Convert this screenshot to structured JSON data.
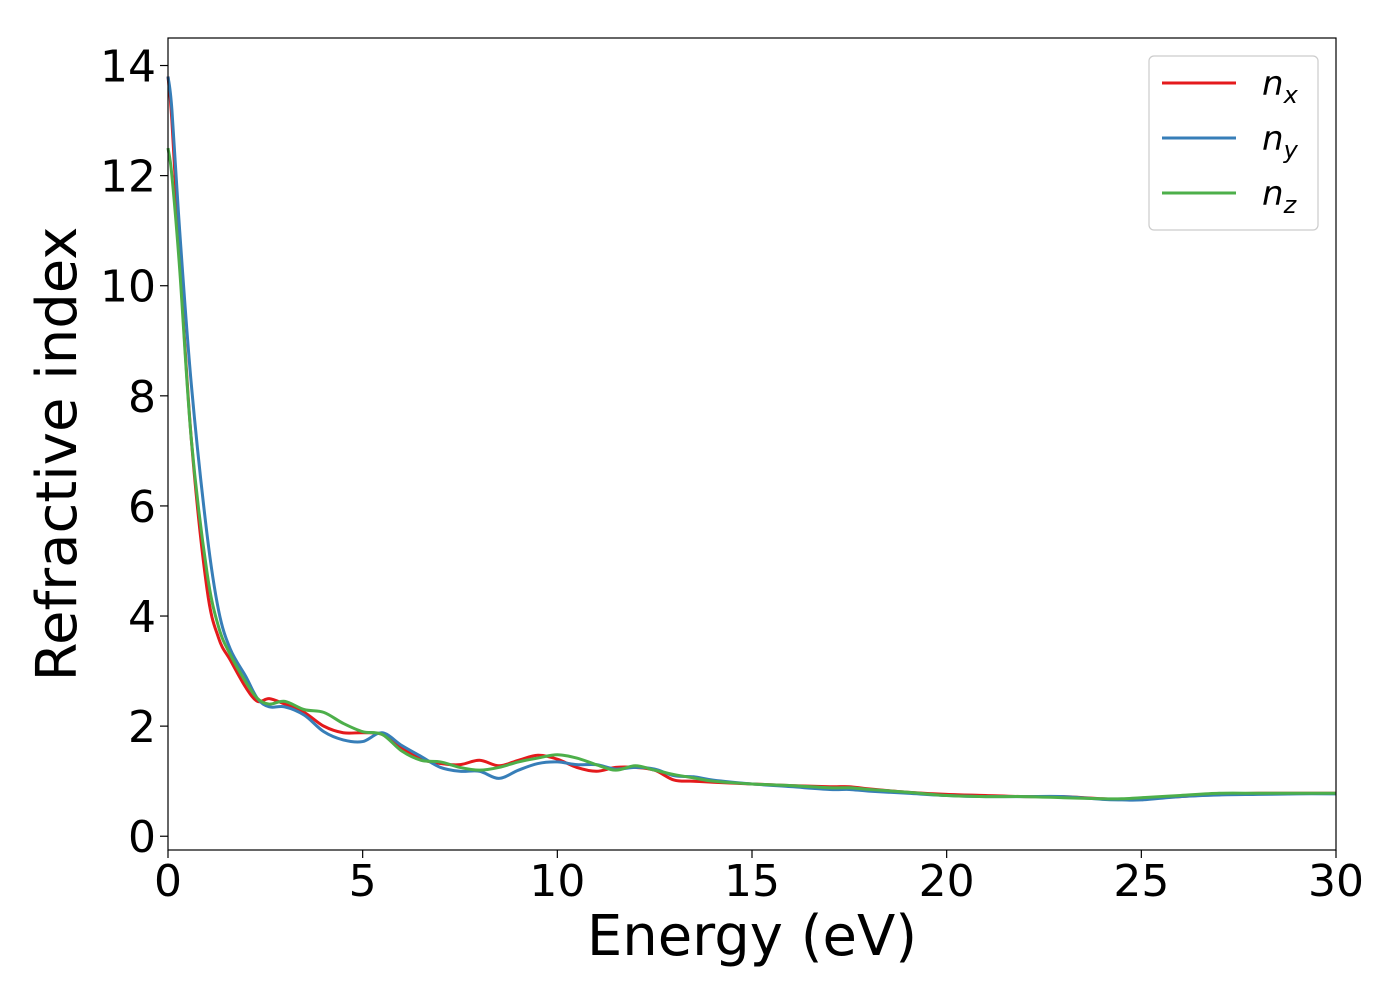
{
  "chart_data": {
    "type": "line",
    "xlabel": "Energy (eV)",
    "ylabel": "Refractive index",
    "xlim": [
      0,
      30
    ],
    "ylim": [
      -0.25,
      14.5
    ],
    "xticks": [
      0,
      5,
      10,
      15,
      20,
      25,
      30
    ],
    "yticks": [
      0,
      2,
      4,
      6,
      8,
      10,
      12,
      14
    ],
    "grid": false,
    "legend_position": "top-right",
    "series": [
      {
        "name": "n",
        "subscript": "x",
        "color": "#e41a1c",
        "x": [
          0,
          0.1,
          0.3,
          0.6,
          1.0,
          1.3,
          1.6,
          2.0,
          2.3,
          2.6,
          3.0,
          3.5,
          4.0,
          4.5,
          5.0,
          5.5,
          6.0,
          6.5,
          7.0,
          7.5,
          8.0,
          8.5,
          9.0,
          9.5,
          10.0,
          10.5,
          11.0,
          11.5,
          12.0,
          12.5,
          13.0,
          13.5,
          14.0,
          15.0,
          16.0,
          17.0,
          17.5,
          18.0,
          19.0,
          20.0,
          21.0,
          22.0,
          23.0,
          24.0,
          24.5,
          25.0,
          26.0,
          27.0,
          28.0,
          29.0,
          30.0
        ],
        "values": [
          13.8,
          13.0,
          10.5,
          7.2,
          4.5,
          3.6,
          3.2,
          2.7,
          2.45,
          2.5,
          2.4,
          2.25,
          2.0,
          1.88,
          1.88,
          1.85,
          1.6,
          1.4,
          1.32,
          1.3,
          1.38,
          1.28,
          1.38,
          1.47,
          1.4,
          1.25,
          1.18,
          1.25,
          1.25,
          1.2,
          1.02,
          1.0,
          0.98,
          0.95,
          0.92,
          0.9,
          0.9,
          0.86,
          0.8,
          0.76,
          0.74,
          0.72,
          0.72,
          0.68,
          0.67,
          0.68,
          0.72,
          0.76,
          0.78,
          0.78,
          0.78
        ]
      },
      {
        "name": "n",
        "subscript": "y",
        "color": "#377eb8",
        "x": [
          0,
          0.1,
          0.3,
          0.6,
          1.0,
          1.3,
          1.6,
          2.0,
          2.3,
          2.6,
          3.0,
          3.5,
          4.0,
          4.5,
          5.0,
          5.5,
          6.0,
          6.5,
          7.0,
          7.5,
          8.0,
          8.5,
          9.0,
          9.5,
          10.0,
          10.5,
          11.0,
          11.5,
          12.0,
          12.5,
          13.0,
          13.5,
          14.0,
          15.0,
          16.0,
          17.0,
          17.5,
          18.0,
          19.0,
          20.0,
          21.0,
          22.0,
          23.0,
          24.0,
          24.5,
          25.0,
          26.0,
          27.0,
          28.0,
          29.0,
          30.0
        ],
        "values": [
          13.8,
          13.2,
          11.0,
          8.2,
          5.5,
          4.1,
          3.4,
          2.9,
          2.5,
          2.35,
          2.35,
          2.2,
          1.9,
          1.75,
          1.72,
          1.88,
          1.65,
          1.45,
          1.25,
          1.18,
          1.18,
          1.05,
          1.2,
          1.32,
          1.35,
          1.3,
          1.3,
          1.22,
          1.25,
          1.22,
          1.1,
          1.08,
          1.02,
          0.95,
          0.9,
          0.85,
          0.85,
          0.82,
          0.78,
          0.74,
          0.72,
          0.72,
          0.72,
          0.67,
          0.66,
          0.66,
          0.72,
          0.75,
          0.76,
          0.77,
          0.77
        ]
      },
      {
        "name": "n",
        "subscript": "z",
        "color": "#4daf4a",
        "x": [
          0,
          0.1,
          0.3,
          0.6,
          1.0,
          1.3,
          1.6,
          2.0,
          2.3,
          2.6,
          3.0,
          3.5,
          4.0,
          4.5,
          5.0,
          5.5,
          6.0,
          6.5,
          7.0,
          7.5,
          8.0,
          8.5,
          9.0,
          9.5,
          10.0,
          10.5,
          11.0,
          11.5,
          12.0,
          12.5,
          13.0,
          13.5,
          14.0,
          15.0,
          16.0,
          17.0,
          17.5,
          18.0,
          19.0,
          20.0,
          21.0,
          22.0,
          23.0,
          24.0,
          24.5,
          25.0,
          26.0,
          27.0,
          28.0,
          29.0,
          30.0
        ],
        "values": [
          12.5,
          12.0,
          10.3,
          7.2,
          4.8,
          3.8,
          3.3,
          2.8,
          2.5,
          2.4,
          2.45,
          2.3,
          2.25,
          2.05,
          1.9,
          1.85,
          1.55,
          1.38,
          1.35,
          1.25,
          1.2,
          1.25,
          1.35,
          1.42,
          1.48,
          1.42,
          1.3,
          1.2,
          1.28,
          1.2,
          1.12,
          1.06,
          1.0,
          0.95,
          0.92,
          0.88,
          0.88,
          0.85,
          0.8,
          0.74,
          0.72,
          0.72,
          0.7,
          0.68,
          0.68,
          0.7,
          0.74,
          0.78,
          0.78,
          0.78,
          0.78
        ]
      }
    ]
  }
}
